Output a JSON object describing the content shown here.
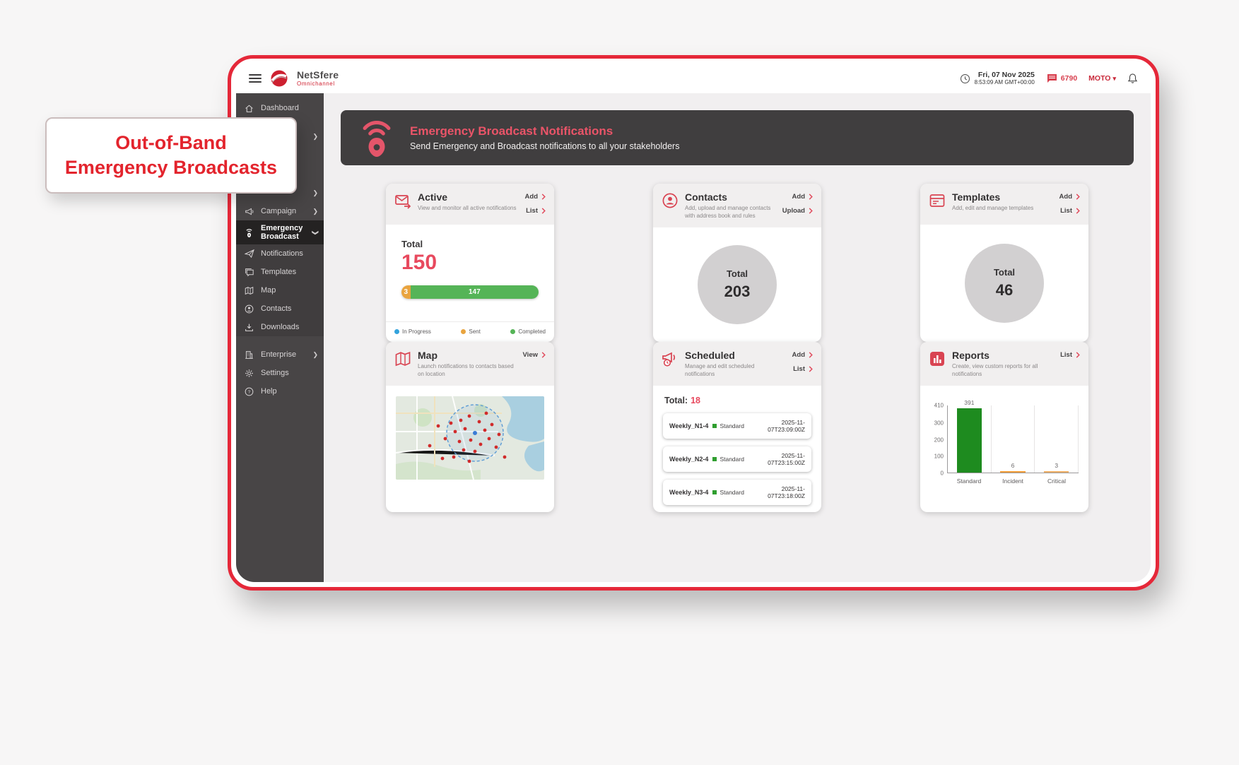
{
  "callout": {
    "line1": "Out-of-Band",
    "line2": "Emergency Broadcasts"
  },
  "header": {
    "brand": {
      "name": "NetSfere",
      "sub": "Omnichannel"
    },
    "datetime": {
      "date": "Fri, 07 Nov 2025",
      "time": "8:53:09 AM GMT+00:00"
    },
    "messages_count": "6790",
    "org": "MOTO"
  },
  "sidebar": {
    "items": [
      {
        "label": "Dashboard",
        "icon": "home-icon"
      },
      {
        "label": "Campaign",
        "icon": "megaphone-icon",
        "chevron": true
      },
      {
        "label": "Emergency Broadcast",
        "icon": "broadcast-pin-icon",
        "chevron": true,
        "active": true
      },
      {
        "label": "Notifications",
        "icon": "send-icon"
      },
      {
        "label": "Templates",
        "icon": "chat-icon"
      },
      {
        "label": "Map",
        "icon": "map-icon"
      },
      {
        "label": "Contacts",
        "icon": "person-icon"
      },
      {
        "label": "Downloads",
        "icon": "download-icon"
      },
      {
        "label": "Enterprise",
        "icon": "building-icon",
        "chevron": true
      },
      {
        "label": "Settings",
        "icon": "gear-icon"
      },
      {
        "label": "Help",
        "icon": "help-icon"
      }
    ]
  },
  "banner": {
    "title": "Emergency Broadcast Notifications",
    "subtitle": "Send Emergency and Broadcast notifications to all your stakeholders"
  },
  "cards": {
    "active": {
      "title": "Active",
      "subtitle": "View and monitor all active notifications",
      "actions": [
        "Add",
        "List"
      ],
      "total_label": "Total",
      "total": "150",
      "bar": {
        "sent": "3",
        "completed": "147"
      },
      "legend": [
        "In Progress",
        "Sent",
        "Completed"
      ]
    },
    "contacts": {
      "title": "Contacts",
      "subtitle": "Add, upload and manage contacts with address book and rules",
      "actions": [
        "Add",
        "Upload"
      ],
      "total_label": "Total",
      "total": "203"
    },
    "templates": {
      "title": "Templates",
      "subtitle": "Add, edit and manage templates",
      "actions": [
        "Add",
        "List"
      ],
      "total_label": "Total",
      "total": "46"
    },
    "map": {
      "title": "Map",
      "subtitle": "Launch notifications to contacts based on location",
      "actions": [
        "View"
      ]
    },
    "scheduled": {
      "title": "Scheduled",
      "subtitle": "Manage and edit scheduled notifications",
      "actions": [
        "Add",
        "List"
      ],
      "total_label": "Total:",
      "total": "18",
      "rows": [
        {
          "name": "Weekly_N1-4",
          "type": "Standard",
          "time": "2025-11-07T23:09:00Z"
        },
        {
          "name": "Weekly_N2-4",
          "type": "Standard",
          "time": "2025-11-07T23:15:00Z"
        },
        {
          "name": "Weekly_N3-4",
          "type": "Standard",
          "time": "2025-11-07T23:18:00Z"
        }
      ]
    },
    "reports": {
      "title": "Reports",
      "subtitle": "Create, view custom reports for all notifications",
      "actions": [
        "List"
      ]
    }
  },
  "chart_data": {
    "type": "bar",
    "categories": [
      "Standard",
      "Incident",
      "Critical"
    ],
    "values": [
      391,
      6,
      3
    ],
    "title": "",
    "xlabel": "",
    "ylabel": "",
    "ylim": [
      0,
      410
    ],
    "yticks": [
      0,
      100,
      200,
      300,
      410
    ],
    "grid": true,
    "bar_colors": [
      "#1e8b1f",
      "#f29d38",
      "#f0b066"
    ]
  },
  "colors": {
    "frame_red": "#e52839",
    "brand_red": "#cf2130",
    "callout_red": "#e3242d",
    "banner_title": "#ea5468",
    "accent_red": "#e8495e",
    "legend_in_progress": "#33a3dc",
    "legend_sent": "#e9a43f",
    "legend_completed": "#55b457",
    "chart_green": "#1e8b1f",
    "chart_orange": "#f29d38",
    "circle_gray": "#d2d0d1",
    "sidebar_bg": "#484546",
    "banner_bg": "#403e3f"
  }
}
